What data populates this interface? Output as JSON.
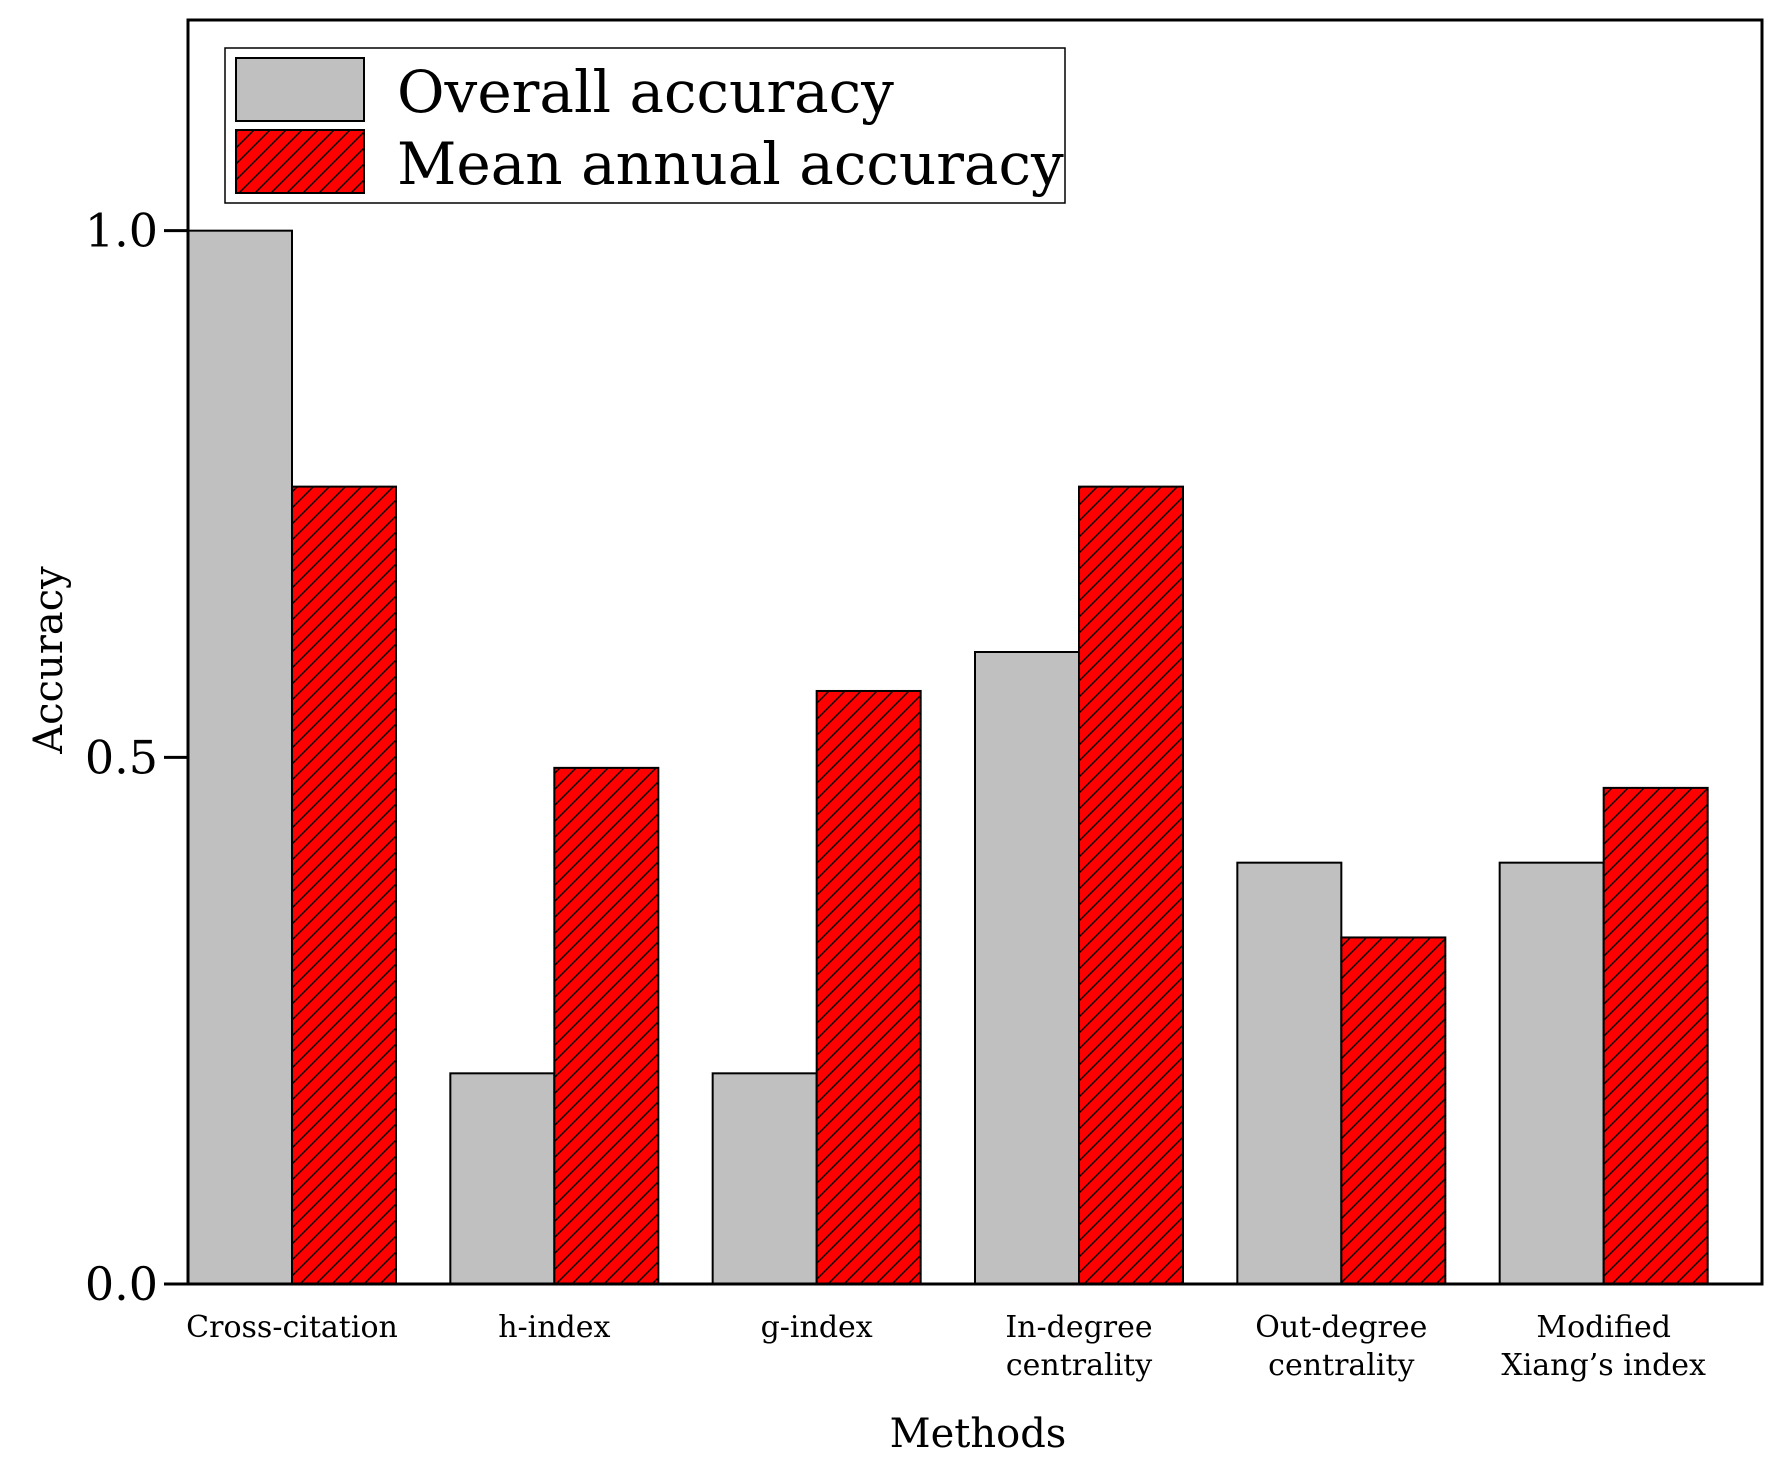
{
  "chart_data": {
    "type": "bar",
    "title": "",
    "xlabel": "Methods",
    "ylabel": "Accuracy",
    "ylim": [
      0,
      1.2
    ],
    "yticks": [
      {
        "value": 0.0,
        "label": "0.0"
      },
      {
        "value": 0.5,
        "label": "0.5"
      },
      {
        "value": 1.0,
        "label": "1.0"
      }
    ],
    "grid": false,
    "legend_position": "top-left",
    "categories": [
      [
        "Cross-citation"
      ],
      [
        "h-index"
      ],
      [
        "g-index"
      ],
      [
        "In-degree",
        "centrality"
      ],
      [
        "Out-degree",
        "centrality"
      ],
      [
        "Modified",
        "Xiang’s index"
      ]
    ],
    "series": [
      {
        "name": "Overall accuracy",
        "color": "#c0c0c0",
        "pattern": "none",
        "values": [
          1.0,
          0.2,
          0.2,
          0.6,
          0.4,
          0.4
        ]
      },
      {
        "name": "Mean annual accuracy",
        "color": "#ff0000",
        "pattern": "diagonal-hatch",
        "values": [
          0.757,
          0.49,
          0.563,
          0.757,
          0.329,
          0.471
        ]
      }
    ]
  }
}
